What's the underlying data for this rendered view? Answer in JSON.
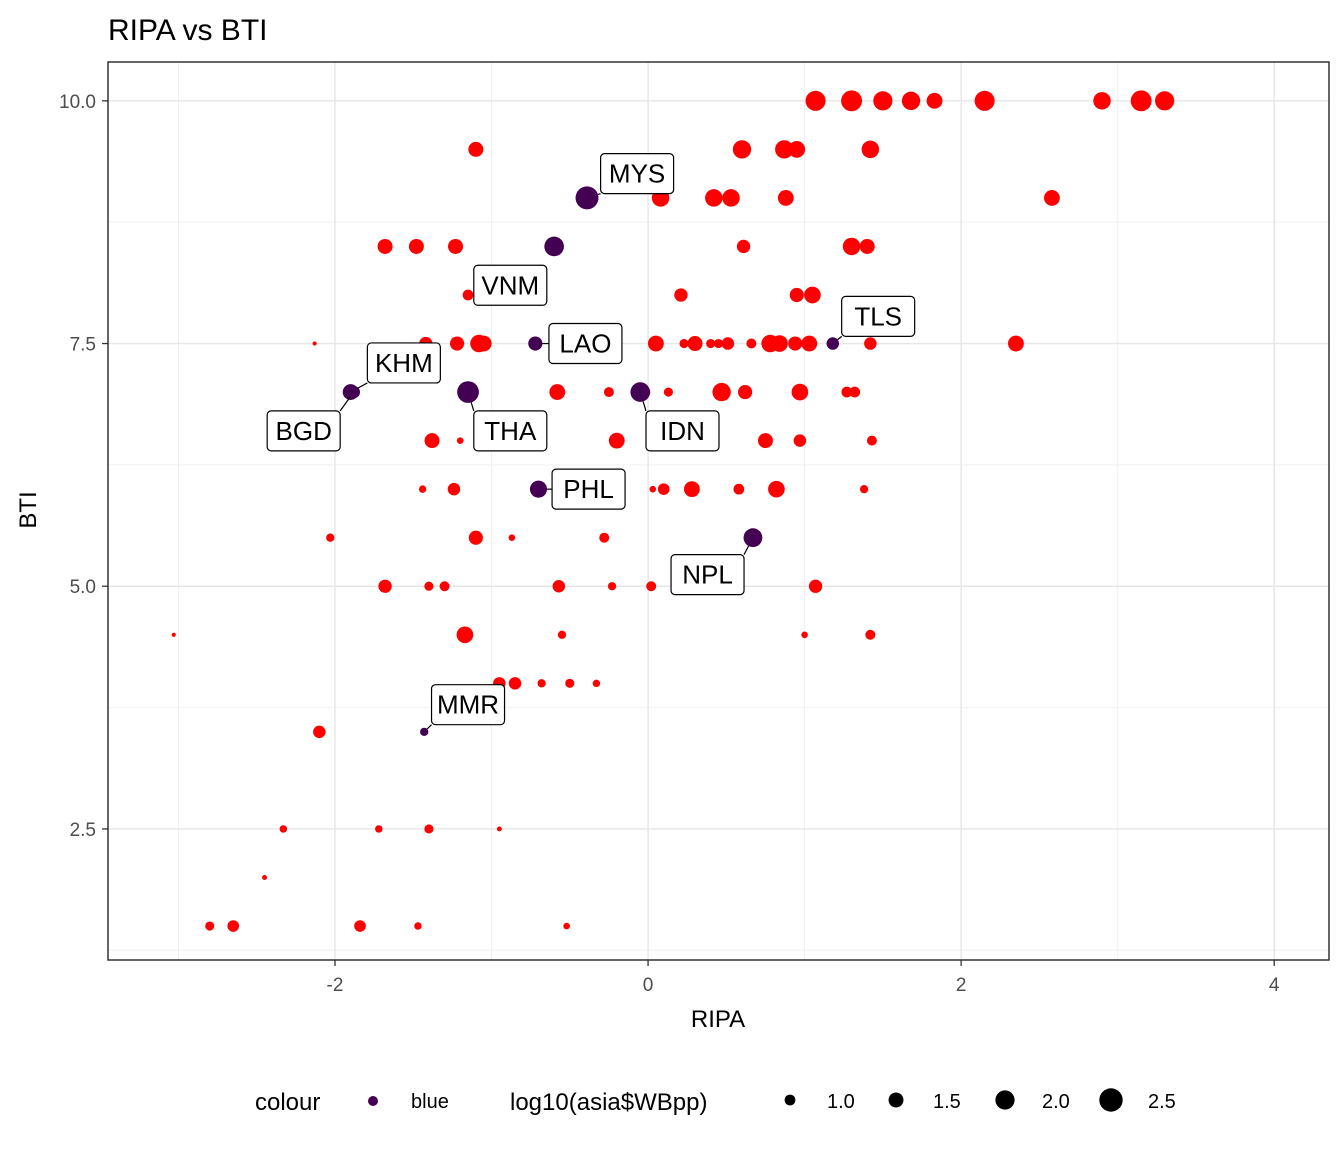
{
  "chart_data": {
    "type": "scatter",
    "title": "RIPA vs BTI",
    "xlabel": "RIPA",
    "ylabel": "BTI",
    "xlim": [
      -3.45,
      4.35
    ],
    "ylim": [
      1.15,
      10.4
    ],
    "x_ticks": [
      -2,
      0,
      2,
      4
    ],
    "x_tick_labels": [
      "-2",
      "0",
      "2",
      "4"
    ],
    "y_ticks": [
      2.5,
      5.0,
      7.5,
      10.0
    ],
    "y_tick_labels": [
      "2.5",
      "5.0",
      "7.5",
      "10.0"
    ],
    "grid": true,
    "legend_position": "bottom",
    "colors": {
      "other": "#ff0000",
      "highlight": "#440154"
    },
    "series": [
      {
        "values": [
          {
            "x": 1.07,
            "y": 10.0,
            "s": 2.1
          },
          {
            "x": 1.3,
            "y": 10.0,
            "s": 2.2
          },
          {
            "x": 1.5,
            "y": 10.0,
            "s": 2.0
          },
          {
            "x": 1.68,
            "y": 10.0,
            "s": 1.9
          },
          {
            "x": 1.83,
            "y": 10.0,
            "s": 1.6
          },
          {
            "x": 2.15,
            "y": 10.0,
            "s": 2.1
          },
          {
            "x": 2.9,
            "y": 10.0,
            "s": 1.8
          },
          {
            "x": 3.15,
            "y": 10.0,
            "s": 2.2
          },
          {
            "x": 3.3,
            "y": 10.0,
            "s": 2.0
          },
          {
            "x": -1.1,
            "y": 9.5,
            "s": 1.5
          },
          {
            "x": 0.6,
            "y": 9.5,
            "s": 1.9
          },
          {
            "x": 0.87,
            "y": 9.5,
            "s": 1.9
          },
          {
            "x": 0.95,
            "y": 9.5,
            "s": 1.7
          },
          {
            "x": 1.42,
            "y": 9.5,
            "s": 1.8
          },
          {
            "x": 0.08,
            "y": 9.0,
            "s": 1.8
          },
          {
            "x": 0.42,
            "y": 9.0,
            "s": 1.8
          },
          {
            "x": 0.53,
            "y": 9.0,
            "s": 1.8
          },
          {
            "x": 0.88,
            "y": 9.0,
            "s": 1.6
          },
          {
            "x": 2.58,
            "y": 9.0,
            "s": 1.6
          },
          {
            "x": -1.68,
            "y": 8.5,
            "s": 1.5
          },
          {
            "x": -1.48,
            "y": 8.5,
            "s": 1.5
          },
          {
            "x": -1.23,
            "y": 8.5,
            "s": 1.5
          },
          {
            "x": 0.61,
            "y": 8.5,
            "s": 1.3
          },
          {
            "x": 1.3,
            "y": 8.5,
            "s": 1.8
          },
          {
            "x": 1.4,
            "y": 8.5,
            "s": 1.5
          },
          {
            "x": -1.15,
            "y": 8.0,
            "s": 1.0
          },
          {
            "x": 0.21,
            "y": 8.0,
            "s": 1.3
          },
          {
            "x": 0.95,
            "y": 8.0,
            "s": 1.4
          },
          {
            "x": 1.05,
            "y": 8.0,
            "s": 1.7
          },
          {
            "x": -0.8,
            "y": 8.0,
            "s": 1.4
          },
          {
            "x": -2.13,
            "y": 7.5,
            "s": 0.2
          },
          {
            "x": -1.42,
            "y": 7.5,
            "s": 1.3
          },
          {
            "x": -1.22,
            "y": 7.5,
            "s": 1.4
          },
          {
            "x": -1.08,
            "y": 7.5,
            "s": 1.8
          },
          {
            "x": -1.05,
            "y": 7.5,
            "s": 1.6
          },
          {
            "x": 0.05,
            "y": 7.5,
            "s": 1.6
          },
          {
            "x": 0.23,
            "y": 7.5,
            "s": 0.8
          },
          {
            "x": 0.3,
            "y": 7.5,
            "s": 1.5
          },
          {
            "x": 0.4,
            "y": 7.5,
            "s": 0.8
          },
          {
            "x": 0.45,
            "y": 7.5,
            "s": 0.8
          },
          {
            "x": 0.51,
            "y": 7.5,
            "s": 1.2
          },
          {
            "x": 0.66,
            "y": 7.5,
            "s": 0.9
          },
          {
            "x": 0.78,
            "y": 7.5,
            "s": 1.8
          },
          {
            "x": 0.84,
            "y": 7.5,
            "s": 1.7
          },
          {
            "x": 0.94,
            "y": 7.5,
            "s": 1.4
          },
          {
            "x": 1.03,
            "y": 7.5,
            "s": 1.6
          },
          {
            "x": 1.42,
            "y": 7.5,
            "s": 1.2
          },
          {
            "x": 2.35,
            "y": 7.5,
            "s": 1.6
          },
          {
            "x": -0.58,
            "y": 7.0,
            "s": 1.6
          },
          {
            "x": -0.25,
            "y": 7.0,
            "s": 0.9
          },
          {
            "x": -0.02,
            "y": 7.0,
            "s": 1.0
          },
          {
            "x": 0.13,
            "y": 7.0,
            "s": 0.8
          },
          {
            "x": 0.47,
            "y": 7.0,
            "s": 1.9
          },
          {
            "x": 0.62,
            "y": 7.0,
            "s": 1.4
          },
          {
            "x": 0.97,
            "y": 7.0,
            "s": 1.7
          },
          {
            "x": 1.27,
            "y": 7.0,
            "s": 1.0
          },
          {
            "x": 1.32,
            "y": 7.0,
            "s": 1.0
          },
          {
            "x": -1.38,
            "y": 6.5,
            "s": 1.5
          },
          {
            "x": -1.2,
            "y": 6.5,
            "s": 0.5
          },
          {
            "x": -0.9,
            "y": 6.5,
            "s": 1.8
          },
          {
            "x": -0.2,
            "y": 6.5,
            "s": 1.6
          },
          {
            "x": 0.75,
            "y": 6.5,
            "s": 1.5
          },
          {
            "x": 0.97,
            "y": 6.5,
            "s": 1.2
          },
          {
            "x": 1.43,
            "y": 6.5,
            "s": 0.9
          },
          {
            "x": -1.44,
            "y": 6.0,
            "s": 0.6
          },
          {
            "x": -1.24,
            "y": 6.0,
            "s": 1.2
          },
          {
            "x": 0.03,
            "y": 6.0,
            "s": 0.5
          },
          {
            "x": 0.1,
            "y": 6.0,
            "s": 1.1
          },
          {
            "x": 0.28,
            "y": 6.0,
            "s": 1.6
          },
          {
            "x": 0.58,
            "y": 6.0,
            "s": 1.0
          },
          {
            "x": 0.82,
            "y": 6.0,
            "s": 1.7
          },
          {
            "x": 1.38,
            "y": 6.0,
            "s": 0.7
          },
          {
            "x": -2.03,
            "y": 5.5,
            "s": 0.7
          },
          {
            "x": -1.1,
            "y": 5.5,
            "s": 1.4
          },
          {
            "x": -0.87,
            "y": 5.5,
            "s": 0.5
          },
          {
            "x": -0.28,
            "y": 5.5,
            "s": 0.9
          },
          {
            "x": -1.68,
            "y": 5.0,
            "s": 1.3
          },
          {
            "x": -1.4,
            "y": 5.0,
            "s": 0.8
          },
          {
            "x": -1.3,
            "y": 5.0,
            "s": 0.9
          },
          {
            "x": -0.57,
            "y": 5.0,
            "s": 1.2
          },
          {
            "x": -0.23,
            "y": 5.0,
            "s": 0.7
          },
          {
            "x": 0.02,
            "y": 5.0,
            "s": 0.9
          },
          {
            "x": 1.07,
            "y": 5.0,
            "s": 1.3
          },
          {
            "x": -3.03,
            "y": 4.5,
            "s": 0.2
          },
          {
            "x": -1.17,
            "y": 4.5,
            "s": 1.7
          },
          {
            "x": -0.55,
            "y": 4.5,
            "s": 0.7
          },
          {
            "x": 1.0,
            "y": 4.5,
            "s": 0.5
          },
          {
            "x": 1.42,
            "y": 4.5,
            "s": 0.9
          },
          {
            "x": -0.95,
            "y": 4.0,
            "s": 1.2
          },
          {
            "x": -0.85,
            "y": 4.0,
            "s": 1.2
          },
          {
            "x": -0.68,
            "y": 4.0,
            "s": 0.7
          },
          {
            "x": -0.5,
            "y": 4.0,
            "s": 0.8
          },
          {
            "x": -0.33,
            "y": 4.0,
            "s": 0.6
          },
          {
            "x": -2.1,
            "y": 3.5,
            "s": 1.2
          },
          {
            "x": -2.33,
            "y": 2.5,
            "s": 0.6
          },
          {
            "x": -1.72,
            "y": 2.5,
            "s": 0.6
          },
          {
            "x": -1.4,
            "y": 2.5,
            "s": 0.8
          },
          {
            "x": -0.95,
            "y": 2.5,
            "s": 0.3
          },
          {
            "x": -2.45,
            "y": 2.0,
            "s": 0.3
          },
          {
            "x": -2.8,
            "y": 1.5,
            "s": 0.8
          },
          {
            "x": -2.65,
            "y": 1.5,
            "s": 1.1
          },
          {
            "x": -1.84,
            "y": 1.5,
            "s": 1.1
          },
          {
            "x": -1.47,
            "y": 1.5,
            "s": 0.6
          },
          {
            "x": -0.52,
            "y": 1.5,
            "s": 0.5
          }
        ]
      },
      {
        "name": "blue",
        "values": [
          {
            "x": -0.39,
            "y": 9.0,
            "s": 2.45,
            "label": "MYS",
            "lx": -0.07,
            "ly": 9.25
          },
          {
            "x": -0.6,
            "y": 8.5,
            "s": 2.05
          },
          {
            "x": -0.8,
            "y": 8.0,
            "s": 1.0,
            "label": "VNM",
            "lx": -0.88,
            "ly": 8.1
          },
          {
            "x": -0.72,
            "y": 7.5,
            "s": 1.4,
            "label": "LAO",
            "lx": -0.4,
            "ly": 7.5
          },
          {
            "x": 1.18,
            "y": 7.5,
            "s": 1.2,
            "label": "TLS",
            "lx": 1.47,
            "ly": 7.78
          },
          {
            "x": -1.9,
            "y": 7.0,
            "s": 1.6,
            "label": "KHM",
            "lx": -1.56,
            "ly": 7.3
          },
          {
            "x": -1.15,
            "y": 7.0,
            "s": 2.3,
            "label": "THA",
            "lx": -0.88,
            "ly": 6.6
          },
          {
            "x": -0.05,
            "y": 7.0,
            "s": 2.05,
            "label": "IDN",
            "lx": 0.22,
            "ly": 6.6
          },
          {
            "x": -1.88,
            "y": 7.0,
            "s": 1.2,
            "label": "BGD",
            "lx": -2.2,
            "ly": 6.6
          },
          {
            "x": -0.7,
            "y": 6.0,
            "s": 1.75,
            "label": "PHL",
            "lx": -0.38,
            "ly": 6.0
          },
          {
            "x": 0.67,
            "y": 5.5,
            "s": 1.95,
            "label": "NPL",
            "lx": 0.38,
            "ly": 5.12
          },
          {
            "x": -1.43,
            "y": 3.5,
            "s": 0.7,
            "label": "MMR",
            "lx": -1.15,
            "ly": 3.78
          }
        ]
      }
    ],
    "legend": {
      "colour_title": "colour",
      "colour_items": [
        {
          "label": "blue"
        }
      ],
      "size_title": "log10(asia$WBpp)",
      "size_items": [
        {
          "label": "1.0",
          "s": 1.0
        },
        {
          "label": "1.5",
          "s": 1.5
        },
        {
          "label": "2.0",
          "s": 2.0
        },
        {
          "label": "2.5",
          "s": 2.5
        }
      ]
    }
  }
}
